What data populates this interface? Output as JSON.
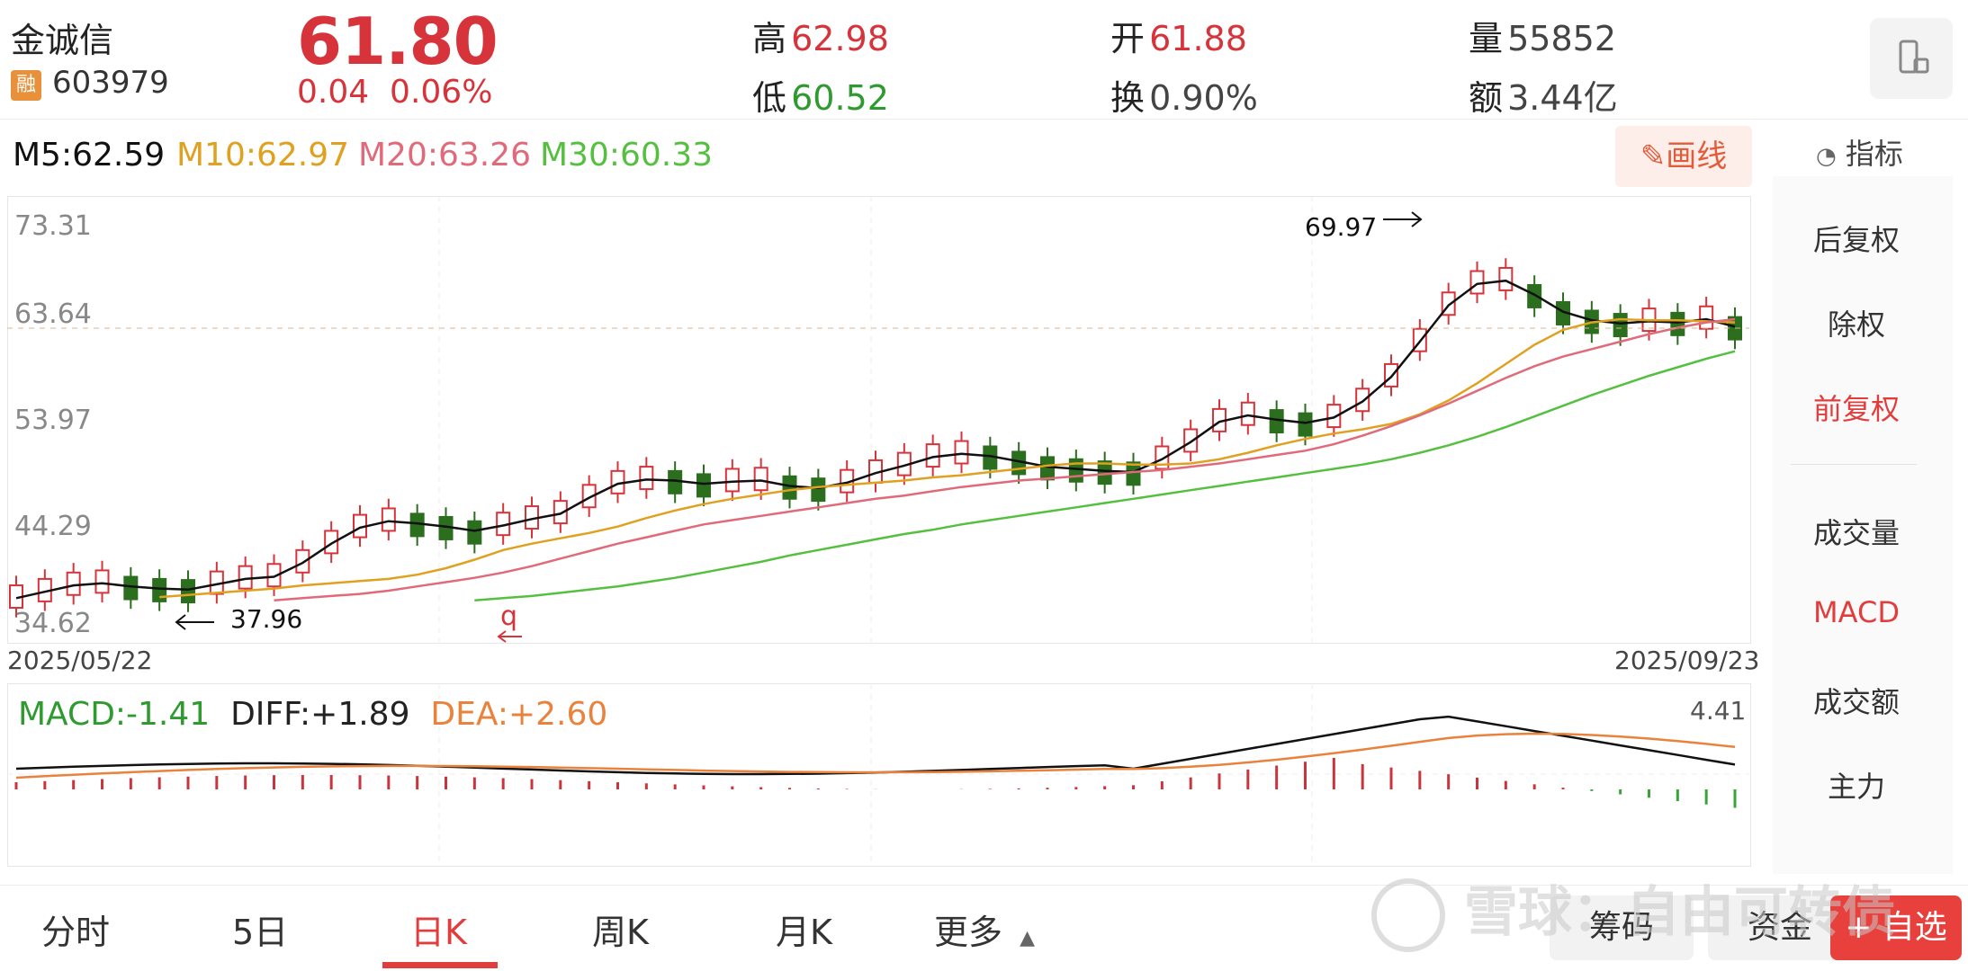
{
  "stock": {
    "name": "金诚信",
    "rong": "融",
    "code": "603979",
    "price": "61.80",
    "change": "0.04",
    "change_pct": "0.06%"
  },
  "quote": {
    "high_label": "高",
    "high": "62.98",
    "low_label": "低",
    "low": "60.52",
    "open_label": "开",
    "open": "61.88",
    "turnover_label": "换",
    "turnover": "0.90%",
    "volume_label": "量",
    "volume": "55852",
    "amount_label": "额",
    "amount": "3.44亿"
  },
  "ma_legend": {
    "m5": "M5:62.59",
    "m10": "M10:62.97",
    "m20": "M20:63.26",
    "m30": "M30:60.33"
  },
  "draw_button": "画线",
  "side": {
    "title": "指标",
    "items": [
      "后复权",
      "除权",
      "前复权",
      "成交量",
      "MACD",
      "成交额",
      "主力"
    ],
    "active": [
      "前复权",
      "MACD"
    ]
  },
  "price_axis": [
    "73.31",
    "63.64",
    "53.97",
    "44.29",
    "34.62"
  ],
  "dates": {
    "start": "2025/05/22",
    "end": "2025/09/23"
  },
  "annotations": {
    "high": "69.97",
    "low": "37.96",
    "mark": "q"
  },
  "macd": {
    "macd": "MACD:-1.41",
    "diff": "DIFF:+1.89",
    "dea": "DEA:+2.60",
    "max": "4.41"
  },
  "tabs": [
    "分时",
    "5日",
    "日K",
    "周K",
    "月K",
    "更多"
  ],
  "active_tab": "日K",
  "bottom_buttons": {
    "chips": "筹码",
    "funds": "资金",
    "add": "+ 自选"
  },
  "watermark": "雪球：自由可转债",
  "colors": {
    "up": "#d7333b",
    "down": "#2a6e1e",
    "ma5": "#111111",
    "ma10": "#e0a020",
    "ma20": "#e06a7a",
    "ma30": "#55c040",
    "dea": "#e8823c"
  },
  "chart_data": {
    "type": "candlestick",
    "ylim": [
      34.62,
      73.31
    ],
    "x_range": [
      "2025/05/22",
      "2025/09/23"
    ],
    "high_point": 69.97,
    "low_point": 37.96,
    "last_close": 61.8,
    "series": [
      {
        "name": "M5",
        "values": [
          37.2,
          37.8,
          38.4,
          38.6,
          38.3,
          38.1,
          38.0,
          38.5,
          39.0,
          39.2,
          40.5,
          42.3,
          43.8,
          44.4,
          44.2,
          43.9,
          43.5,
          44.0,
          44.6,
          45.1,
          46.6,
          47.9,
          48.3,
          48.2,
          47.9,
          48.1,
          48.2,
          47.7,
          47.5,
          48.0,
          48.9,
          49.6,
          50.4,
          50.7,
          50.5,
          50.0,
          49.5,
          49.3,
          49.1,
          49.0,
          50.2,
          51.8,
          53.7,
          54.3,
          53.9,
          53.6,
          54.1,
          55.6,
          57.9,
          61.2,
          64.6,
          66.6,
          66.9,
          65.6,
          64.0,
          63.2,
          62.9,
          63.1,
          63.0,
          63.3,
          62.6
        ]
      },
      {
        "name": "M10",
        "values": [
          37.3,
          37.5,
          37.7,
          37.9,
          38.1,
          38.4,
          38.6,
          38.8,
          39.0,
          39.4,
          40.0,
          40.8,
          41.7,
          42.3,
          42.8,
          43.3,
          43.9,
          44.7,
          45.4,
          46.0,
          46.5,
          46.9,
          47.3,
          47.6,
          47.8,
          48.0,
          48.2,
          48.5,
          48.7,
          49.0,
          49.3,
          49.6,
          49.8,
          49.8,
          49.7,
          49.7,
          49.8,
          50.2,
          50.8,
          51.5,
          52.1,
          52.6,
          53.0,
          53.5,
          54.4,
          55.7,
          57.3,
          59.1,
          60.9,
          62.3,
          63.0,
          63.3,
          63.2,
          63.2,
          63.1,
          63.0
        ]
      },
      {
        "name": "M20",
        "values": [
          37.0,
          37.2,
          37.4,
          37.6,
          37.9,
          38.3,
          38.7,
          39.1,
          39.6,
          40.2,
          40.9,
          41.6,
          42.3,
          42.9,
          43.5,
          44.1,
          44.5,
          44.9,
          45.3,
          45.7,
          46.1,
          46.5,
          46.8,
          47.2,
          47.6,
          47.9,
          48.2,
          48.4,
          48.6,
          48.8,
          49.0,
          49.2,
          49.5,
          49.8,
          50.2,
          50.6,
          51.0,
          51.6,
          52.4,
          53.3,
          54.3,
          55.4,
          56.6,
          57.8,
          58.9,
          59.8,
          60.5,
          61.2,
          61.9,
          62.5,
          63.0,
          63.3
        ]
      },
      {
        "name": "M30",
        "values": [
          37.0,
          37.2,
          37.4,
          37.7,
          38.0,
          38.3,
          38.7,
          39.1,
          39.6,
          40.1,
          40.6,
          41.2,
          41.7,
          42.2,
          42.7,
          43.2,
          43.6,
          44.1,
          44.5,
          44.9,
          45.3,
          45.7,
          46.1,
          46.5,
          46.9,
          47.3,
          47.7,
          48.1,
          48.5,
          48.9,
          49.3,
          49.7,
          50.2,
          50.8,
          51.5,
          52.3,
          53.2,
          54.2,
          55.2,
          56.2,
          57.1,
          58.0,
          58.8,
          59.6,
          60.3
        ]
      }
    ]
  }
}
